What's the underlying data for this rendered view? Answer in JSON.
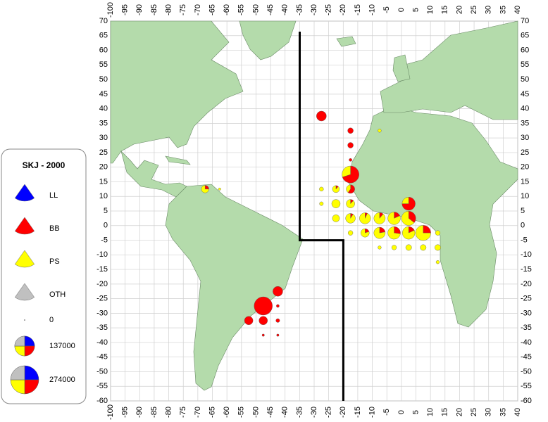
{
  "map": {
    "xlim": [
      -100,
      40
    ],
    "ylim": [
      -60,
      70
    ],
    "xticks": [
      -100,
      -95,
      -90,
      -85,
      -80,
      -75,
      -70,
      -65,
      -60,
      -55,
      -50,
      -45,
      -40,
      -35,
      -30,
      -25,
      -20,
      -15,
      -10,
      -5,
      0,
      5,
      10,
      15,
      20,
      25,
      30,
      35,
      40
    ],
    "yticks": [
      70,
      65,
      60,
      55,
      50,
      45,
      40,
      35,
      30,
      25,
      20,
      15,
      10,
      5,
      0,
      -5,
      -10,
      -15,
      -20,
      -25,
      -30,
      -35,
      -40,
      -45,
      -50,
      -55,
      -60
    ],
    "pies": [
      {
        "lon": -27.5,
        "lat": 37.5,
        "values": [
          0,
          34000,
          0,
          0
        ]
      },
      {
        "lon": -17.5,
        "lat": 32.5,
        "values": [
          0,
          11000,
          0,
          0
        ]
      },
      {
        "lon": -17.5,
        "lat": 27.5,
        "values": [
          0,
          11000,
          0,
          0
        ]
      },
      {
        "lon": -17.5,
        "lat": 22.5,
        "values": [
          0,
          3000,
          0,
          0
        ]
      },
      {
        "lon": -17.5,
        "lat": 17.5,
        "values": [
          0,
          70000,
          30000,
          0
        ]
      },
      {
        "lon": -17.5,
        "lat": 12.5,
        "values": [
          0,
          15000,
          10000,
          0
        ]
      },
      {
        "lon": -22.5,
        "lat": 12.5,
        "values": [
          0,
          2000,
          15000,
          0
        ]
      },
      {
        "lon": -27.5,
        "lat": 12.5,
        "values": [
          0,
          0,
          6000,
          0
        ]
      },
      {
        "lon": -27.5,
        "lat": 7.5,
        "values": [
          0,
          0,
          5000,
          0
        ]
      },
      {
        "lon": -22.5,
        "lat": 7.5,
        "values": [
          0,
          0,
          25000,
          0
        ]
      },
      {
        "lon": -17.5,
        "lat": 7.5,
        "values": [
          0,
          3000,
          22000,
          0
        ]
      },
      {
        "lon": -22.5,
        "lat": 2.5,
        "values": [
          0,
          0,
          18000,
          0
        ]
      },
      {
        "lon": -17.5,
        "lat": 2.5,
        "values": [
          0,
          3000,
          30000,
          0
        ]
      },
      {
        "lon": -12.5,
        "lat": 2.5,
        "values": [
          0,
          3000,
          40000,
          0
        ]
      },
      {
        "lon": -7.5,
        "lat": 2.5,
        "values": [
          0,
          5000,
          40000,
          0
        ]
      },
      {
        "lon": -2.5,
        "lat": 2.5,
        "values": [
          0,
          10000,
          45000,
          0
        ]
      },
      {
        "lon": 2.5,
        "lat": 2.5,
        "values": [
          0,
          25000,
          45000,
          0
        ]
      },
      {
        "lon": 2.5,
        "lat": 7.5,
        "values": [
          0,
          45000,
          15000,
          0
        ]
      },
      {
        "lon": -17.5,
        "lat": -2.5,
        "values": [
          0,
          0,
          8000,
          0
        ]
      },
      {
        "lon": -12.5,
        "lat": -2.5,
        "values": [
          0,
          5000,
          20000,
          0
        ]
      },
      {
        "lon": -7.5,
        "lat": -2.5,
        "values": [
          0,
          10000,
          35000,
          0
        ]
      },
      {
        "lon": -2.5,
        "lat": -2.5,
        "values": [
          0,
          15000,
          40000,
          0
        ]
      },
      {
        "lon": 2.5,
        "lat": -2.5,
        "values": [
          0,
          10000,
          45000,
          0
        ]
      },
      {
        "lon": 7.5,
        "lat": -2.5,
        "values": [
          0,
          20000,
          60000,
          0
        ]
      },
      {
        "lon": 12.5,
        "lat": -2.5,
        "values": [
          0,
          0,
          8000,
          0
        ]
      },
      {
        "lon": -7.5,
        "lat": -7.5,
        "values": [
          0,
          0,
          4000,
          0
        ]
      },
      {
        "lon": -2.5,
        "lat": -7.5,
        "values": [
          0,
          0,
          8000,
          0
        ]
      },
      {
        "lon": 2.5,
        "lat": -7.5,
        "values": [
          0,
          0,
          12000,
          0
        ]
      },
      {
        "lon": 7.5,
        "lat": -7.5,
        "values": [
          0,
          0,
          12000,
          0
        ]
      },
      {
        "lon": 12.5,
        "lat": -7.5,
        "values": [
          0,
          0,
          12000,
          0
        ]
      },
      {
        "lon": 12.5,
        "lat": -12.5,
        "values": [
          0,
          0,
          4000,
          0
        ]
      },
      {
        "lon": -7.5,
        "lat": 32.5,
        "values": [
          0,
          0,
          4000,
          0
        ]
      },
      {
        "lon": -67.5,
        "lat": 12.5,
        "values": [
          0,
          5000,
          15000,
          0
        ]
      },
      {
        "lon": -62.5,
        "lat": 12.5,
        "values": [
          0,
          0,
          2000,
          0
        ]
      },
      {
        "lon": -42.5,
        "lat": -22.5,
        "values": [
          0,
          34000,
          0,
          0
        ]
      },
      {
        "lon": -47.5,
        "lat": -27.5,
        "values": [
          0,
          115000,
          0,
          0
        ]
      },
      {
        "lon": -52.5,
        "lat": -32.5,
        "values": [
          0,
          25000,
          0,
          0
        ]
      },
      {
        "lon": -47.5,
        "lat": -32.5,
        "values": [
          0,
          25000,
          0,
          0
        ]
      },
      {
        "lon": -42.5,
        "lat": -27.5,
        "values": [
          0,
          3000,
          0,
          0
        ]
      },
      {
        "lon": -42.5,
        "lat": -32.5,
        "values": [
          0,
          5000,
          0,
          0
        ]
      },
      {
        "lon": -42.5,
        "lat": -37.5,
        "values": [
          0,
          2000,
          0,
          0
        ]
      },
      {
        "lon": -47.5,
        "lat": -37.5,
        "values": [
          0,
          2000,
          0,
          0
        ]
      }
    ]
  },
  "legend": {
    "title": "SKJ - 2000",
    "gears": [
      {
        "name": "LL",
        "color": "#0000ff"
      },
      {
        "name": "BB",
        "color": "#ff0000"
      },
      {
        "name": "PS",
        "color": "#ffff00"
      },
      {
        "name": "OTH",
        "color": "#c0c0c0"
      }
    ],
    "sizes": [
      0,
      137000,
      274000
    ]
  }
}
